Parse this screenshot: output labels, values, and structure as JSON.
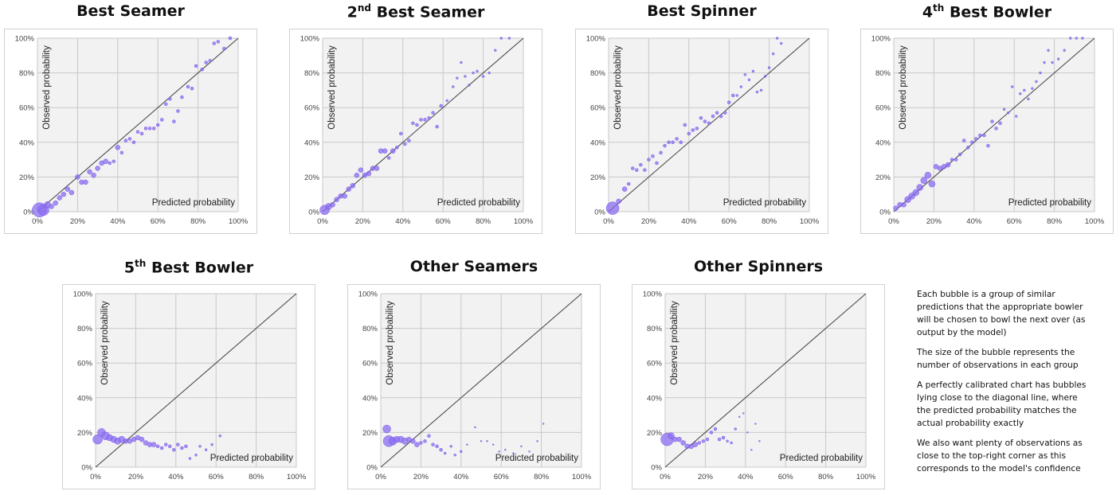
{
  "colors": {
    "bubble": "#8b6cf0",
    "bubble_edge": "#7a5ae8",
    "plot_bg": "#f2f2f2",
    "grid": "#c8c8c8",
    "diagonal": "#404040"
  },
  "notes": [
    "Each bubble is a group of similar predictions that the appropriate bowler will be chosen to bowl the next over (as output by the model)",
    "The size of the bubble represents the number of observations in each group",
    "A perfectly calibrated chart has bubbles lying close to the diagonal line, where the predicted probability matches the actual probability exactly",
    "We also want plenty of observations as close to the top-right corner as this corresponds to the model's confidence"
  ],
  "chart_data": [
    {
      "type": "scatter",
      "title": "Best Seamer",
      "title_sup": "",
      "xlabel": "Predicted probability",
      "ylabel": "Observed probability",
      "xlim": [
        0,
        100
      ],
      "ylim": [
        0,
        100
      ],
      "ticks": [
        "0%",
        "20%",
        "40%",
        "60%",
        "80%",
        "100%"
      ],
      "diagonal": true,
      "points": [
        [
          1,
          1,
          9
        ],
        [
          3,
          1,
          7
        ],
        [
          5,
          4,
          4
        ],
        [
          7,
          3,
          3
        ],
        [
          9,
          5,
          3
        ],
        [
          11,
          8,
          3
        ],
        [
          13,
          10,
          3
        ],
        [
          15,
          13,
          3
        ],
        [
          17,
          11,
          3
        ],
        [
          20,
          20,
          3
        ],
        [
          22,
          17,
          3
        ],
        [
          24,
          17,
          3
        ],
        [
          26,
          23,
          3
        ],
        [
          28,
          21,
          3
        ],
        [
          30,
          25,
          3
        ],
        [
          32,
          28,
          3
        ],
        [
          34,
          29,
          3
        ],
        [
          36,
          28,
          2
        ],
        [
          38,
          29,
          2
        ],
        [
          40,
          37,
          3
        ],
        [
          42,
          34,
          2
        ],
        [
          44,
          41,
          2
        ],
        [
          46,
          42,
          2
        ],
        [
          48,
          40,
          2
        ],
        [
          50,
          46,
          2
        ],
        [
          52,
          45,
          2
        ],
        [
          54,
          48,
          2
        ],
        [
          56,
          48,
          2
        ],
        [
          58,
          48,
          2
        ],
        [
          60,
          50,
          2
        ],
        [
          62,
          53,
          2
        ],
        [
          64,
          62,
          2
        ],
        [
          66,
          65,
          2
        ],
        [
          68,
          52,
          2
        ],
        [
          70,
          58,
          2
        ],
        [
          72,
          66,
          2
        ],
        [
          75,
          72,
          2
        ],
        [
          77,
          71,
          2
        ],
        [
          79,
          84,
          2
        ],
        [
          82,
          82,
          2
        ],
        [
          84,
          86,
          2
        ],
        [
          86,
          87,
          2
        ],
        [
          88,
          97,
          2
        ],
        [
          90,
          98,
          2
        ],
        [
          93,
          94,
          2
        ],
        [
          96,
          100,
          2
        ]
      ]
    },
    {
      "type": "scatter",
      "title": "2",
      "title_sup": "nd",
      "title_rest": " Best Seamer",
      "xlabel": "Predicted probability",
      "ylabel": "Observed probability",
      "xlim": [
        0,
        100
      ],
      "ylim": [
        0,
        100
      ],
      "ticks": [
        "0%",
        "20%",
        "40%",
        "60%",
        "80%",
        "100%"
      ],
      "diagonal": true,
      "points": [
        [
          1,
          1,
          6
        ],
        [
          3,
          3,
          4
        ],
        [
          5,
          4,
          3
        ],
        [
          7,
          7,
          3
        ],
        [
          9,
          9,
          3
        ],
        [
          11,
          9,
          3
        ],
        [
          13,
          13,
          3
        ],
        [
          15,
          15,
          3
        ],
        [
          17,
          21,
          3
        ],
        [
          19,
          24,
          3
        ],
        [
          21,
          21,
          3
        ],
        [
          23,
          22,
          3
        ],
        [
          25,
          25,
          3
        ],
        [
          27,
          25,
          3
        ],
        [
          29,
          35,
          3
        ],
        [
          31,
          35,
          3
        ],
        [
          33,
          31,
          2
        ],
        [
          35,
          35,
          3
        ],
        [
          37,
          37,
          2
        ],
        [
          39,
          45,
          2
        ],
        [
          41,
          39,
          2
        ],
        [
          43,
          41,
          2
        ],
        [
          45,
          51,
          2
        ],
        [
          47,
          50,
          2
        ],
        [
          49,
          53,
          2
        ],
        [
          51,
          53,
          2
        ],
        [
          53,
          54,
          2
        ],
        [
          55,
          57,
          2
        ],
        [
          57,
          49,
          2
        ],
        [
          59,
          61,
          2
        ],
        [
          62,
          64,
          1.5
        ],
        [
          65,
          72,
          1.5
        ],
        [
          67,
          77,
          1.5
        ],
        [
          69,
          86,
          1.5
        ],
        [
          71,
          78,
          1.5
        ],
        [
          73,
          73,
          1.5
        ],
        [
          75,
          80,
          1.5
        ],
        [
          77,
          81,
          1.5
        ],
        [
          80,
          78,
          1.5
        ],
        [
          83,
          80,
          1.5
        ],
        [
          86,
          93,
          1.5
        ],
        [
          89,
          100,
          1.5
        ],
        [
          93,
          100,
          1.5
        ]
      ]
    },
    {
      "type": "scatter",
      "title": "Best Spinner",
      "title_sup": "",
      "xlabel": "Predicted probability",
      "ylabel": "Observed probability",
      "xlim": [
        0,
        100
      ],
      "ylim": [
        0,
        100
      ],
      "ticks": [
        "0%",
        "20%",
        "40%",
        "60%",
        "80%",
        "100%"
      ],
      "diagonal": true,
      "points": [
        [
          2,
          2,
          8
        ],
        [
          5,
          6,
          3
        ],
        [
          8,
          13,
          3
        ],
        [
          10,
          16,
          2
        ],
        [
          12,
          25,
          2
        ],
        [
          14,
          24,
          2
        ],
        [
          16,
          27,
          2
        ],
        [
          18,
          24,
          2
        ],
        [
          20,
          30,
          2
        ],
        [
          22,
          32,
          2
        ],
        [
          24,
          28,
          2
        ],
        [
          26,
          34,
          2
        ],
        [
          28,
          38,
          2
        ],
        [
          30,
          40,
          2
        ],
        [
          32,
          40,
          2
        ],
        [
          34,
          42,
          2
        ],
        [
          36,
          40,
          2
        ],
        [
          38,
          50,
          2
        ],
        [
          40,
          45,
          2
        ],
        [
          42,
          47,
          2
        ],
        [
          44,
          48,
          2
        ],
        [
          46,
          54,
          2
        ],
        [
          48,
          52,
          2
        ],
        [
          50,
          51,
          2
        ],
        [
          52,
          55,
          2
        ],
        [
          54,
          57,
          2
        ],
        [
          56,
          55,
          2
        ],
        [
          58,
          57,
          2
        ],
        [
          60,
          63,
          2
        ],
        [
          62,
          67,
          2
        ],
        [
          64,
          67,
          1.5
        ],
        [
          66,
          72,
          1.5
        ],
        [
          68,
          79,
          1.5
        ],
        [
          70,
          76,
          1.5
        ],
        [
          72,
          81,
          1.5
        ],
        [
          74,
          69,
          1.5
        ],
        [
          76,
          70,
          1.5
        ],
        [
          78,
          78,
          1.5
        ],
        [
          80,
          83,
          1.5
        ],
        [
          82,
          91,
          1.5
        ],
        [
          84,
          100,
          1.5
        ],
        [
          86,
          97,
          1.5
        ]
      ]
    },
    {
      "type": "scatter",
      "title": "4",
      "title_sup": "th",
      "title_rest": " Best Bowler",
      "xlabel": "Predicted probability",
      "ylabel": "Observed probability",
      "xlim": [
        0,
        100
      ],
      "ylim": [
        0,
        100
      ],
      "ticks": [
        "0%",
        "20%",
        "40%",
        "60%",
        "80%",
        "100%"
      ],
      "diagonal": true,
      "points": [
        [
          1,
          2,
          3
        ],
        [
          3,
          4,
          3
        ],
        [
          5,
          4,
          3
        ],
        [
          7,
          7,
          4
        ],
        [
          9,
          9,
          4
        ],
        [
          11,
          11,
          4
        ],
        [
          13,
          14,
          4
        ],
        [
          15,
          18,
          4
        ],
        [
          17,
          21,
          4
        ],
        [
          19,
          16,
          4
        ],
        [
          21,
          26,
          3
        ],
        [
          23,
          25,
          3
        ],
        [
          25,
          26,
          3
        ],
        [
          27,
          27,
          3
        ],
        [
          29,
          30,
          2
        ],
        [
          31,
          30,
          2
        ],
        [
          33,
          33,
          2
        ],
        [
          35,
          41,
          2
        ],
        [
          37,
          37,
          2
        ],
        [
          39,
          40,
          2
        ],
        [
          41,
          42,
          2
        ],
        [
          43,
          44,
          2
        ],
        [
          45,
          44,
          2
        ],
        [
          47,
          38,
          2
        ],
        [
          49,
          52,
          2
        ],
        [
          51,
          48,
          2
        ],
        [
          53,
          51,
          2
        ],
        [
          55,
          59,
          1.5
        ],
        [
          57,
          57,
          1.5
        ],
        [
          59,
          72,
          1.5
        ],
        [
          61,
          55,
          1.5
        ],
        [
          63,
          68,
          1.5
        ],
        [
          65,
          70,
          1.5
        ],
        [
          67,
          65,
          1.5
        ],
        [
          69,
          71,
          1.5
        ],
        [
          71,
          75,
          1.5
        ],
        [
          73,
          80,
          1.5
        ],
        [
          75,
          86,
          1.5
        ],
        [
          77,
          93,
          1.5
        ],
        [
          79,
          86,
          1.5
        ],
        [
          82,
          88,
          1.5
        ],
        [
          85,
          93,
          1.5
        ],
        [
          88,
          100,
          1.5
        ],
        [
          91,
          100,
          1.5
        ],
        [
          94,
          100,
          1.5
        ]
      ]
    },
    {
      "type": "scatter",
      "title": "5",
      "title_sup": "th",
      "title_rest": " Best Bowler",
      "xlabel": "Predicted probability",
      "ylabel": "Observed probability",
      "xlim": [
        0,
        100
      ],
      "ylim": [
        0,
        100
      ],
      "ticks": [
        "0%",
        "20%",
        "40%",
        "60%",
        "80%",
        "100%"
      ],
      "diagonal": true,
      "points": [
        [
          1,
          16,
          6
        ],
        [
          3,
          20,
          5
        ],
        [
          5,
          18,
          5
        ],
        [
          7,
          17,
          4
        ],
        [
          9,
          16,
          4
        ],
        [
          11,
          15,
          4
        ],
        [
          13,
          16,
          4
        ],
        [
          15,
          15,
          3
        ],
        [
          17,
          15,
          3
        ],
        [
          19,
          16,
          3
        ],
        [
          21,
          17,
          3
        ],
        [
          23,
          16,
          3
        ],
        [
          25,
          14,
          3
        ],
        [
          27,
          13,
          3
        ],
        [
          29,
          13,
          3
        ],
        [
          31,
          12,
          2
        ],
        [
          33,
          11,
          2
        ],
        [
          35,
          13,
          2
        ],
        [
          37,
          12,
          2
        ],
        [
          39,
          10,
          2
        ],
        [
          41,
          13,
          2
        ],
        [
          43,
          11,
          2
        ],
        [
          45,
          12,
          2
        ],
        [
          47,
          5,
          1.5
        ],
        [
          50,
          7,
          1.5
        ],
        [
          52,
          12,
          1.5
        ],
        [
          55,
          10,
          1.5
        ],
        [
          58,
          13,
          1.5
        ],
        [
          62,
          18,
          1.5
        ]
      ]
    },
    {
      "type": "scatter",
      "title": "Other Seamers",
      "title_sup": "",
      "xlabel": "Predicted probability",
      "ylabel": "Observed probability",
      "xlim": [
        0,
        100
      ],
      "ylim": [
        0,
        100
      ],
      "ticks": [
        "0%",
        "20%",
        "40%",
        "60%",
        "80%",
        "100%"
      ],
      "diagonal": true,
      "points": [
        [
          3,
          22,
          5
        ],
        [
          4,
          15,
          7
        ],
        [
          6,
          15,
          5
        ],
        [
          8,
          16,
          4
        ],
        [
          10,
          16,
          4
        ],
        [
          12,
          15,
          4
        ],
        [
          14,
          16,
          3
        ],
        [
          16,
          15,
          3
        ],
        [
          18,
          13,
          3
        ],
        [
          20,
          14,
          2
        ],
        [
          22,
          15,
          2
        ],
        [
          24,
          18,
          2
        ],
        [
          26,
          13,
          2
        ],
        [
          28,
          12,
          2
        ],
        [
          30,
          10,
          2
        ],
        [
          32,
          8,
          1.5
        ],
        [
          35,
          12,
          1.5
        ],
        [
          37,
          7,
          1.5
        ],
        [
          40,
          9,
          1.5
        ],
        [
          43,
          13,
          1
        ],
        [
          47,
          23,
          1
        ],
        [
          50,
          15,
          1
        ],
        [
          53,
          15,
          1
        ],
        [
          56,
          13,
          1
        ],
        [
          59,
          9,
          1
        ],
        [
          62,
          10,
          1
        ],
        [
          66,
          8,
          1
        ],
        [
          70,
          12,
          1
        ],
        [
          74,
          9,
          1
        ],
        [
          78,
          15,
          1
        ],
        [
          81,
          25,
          1
        ]
      ]
    },
    {
      "type": "scatter",
      "title": "Other Spinners",
      "title_sup": "",
      "xlabel": "Predicted probability",
      "ylabel": "Observed probability",
      "xlim": [
        0,
        100
      ],
      "ylim": [
        0,
        100
      ],
      "ticks": [
        "0%",
        "20%",
        "40%",
        "60%",
        "80%",
        "100%"
      ],
      "diagonal": true,
      "points": [
        [
          1,
          16,
          8
        ],
        [
          3,
          18,
          4
        ],
        [
          5,
          16,
          3
        ],
        [
          7,
          16,
          3
        ],
        [
          9,
          14,
          3
        ],
        [
          11,
          12,
          3
        ],
        [
          13,
          12,
          3
        ],
        [
          15,
          13,
          3
        ],
        [
          17,
          14,
          2
        ],
        [
          19,
          15,
          2
        ],
        [
          21,
          16,
          2
        ],
        [
          23,
          20,
          2
        ],
        [
          25,
          22,
          2
        ],
        [
          27,
          16,
          2
        ],
        [
          29,
          17,
          2
        ],
        [
          31,
          15,
          1.5
        ],
        [
          33,
          14,
          1.5
        ],
        [
          35,
          22,
          1.5
        ],
        [
          37,
          29,
          1
        ],
        [
          39,
          31,
          1
        ],
        [
          41,
          20,
          1
        ],
        [
          43,
          10,
          1
        ],
        [
          45,
          25,
          1
        ],
        [
          47,
          15,
          1
        ]
      ]
    }
  ]
}
